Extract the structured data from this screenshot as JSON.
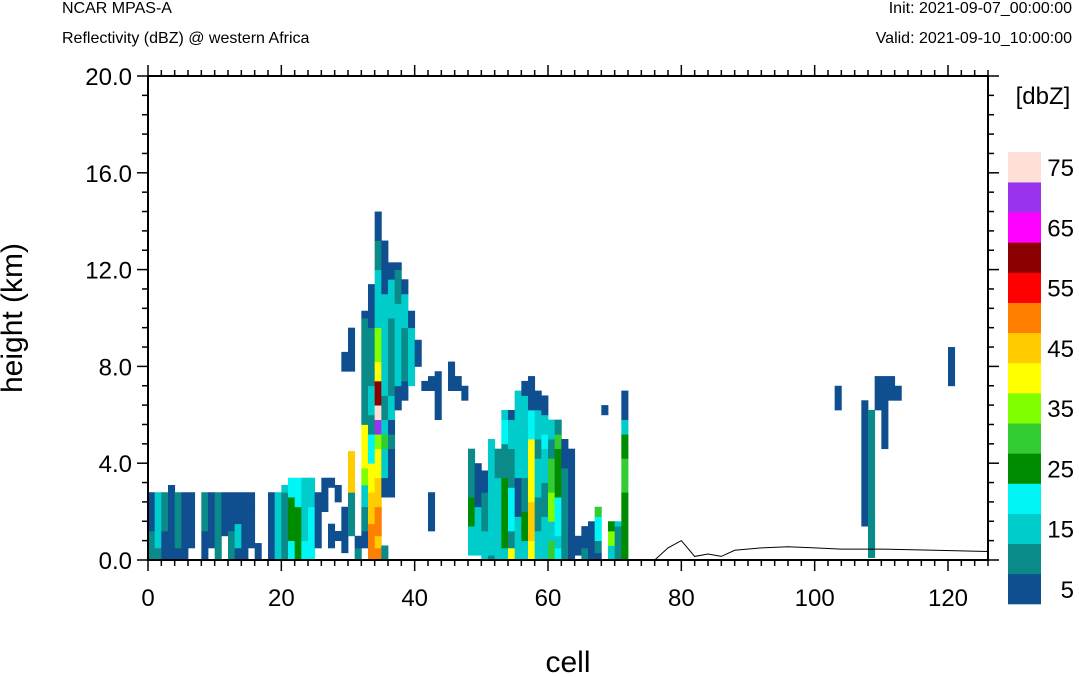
{
  "header": {
    "left_title": "NCAR MPAS-A",
    "left_subtitle": "Reflectivity (dBZ) @ western Africa",
    "init_label": "Init: 2021-09-07_00:00:00",
    "valid_label": "Valid: 2021-09-10_10:00:00"
  },
  "chart_data": {
    "type": "heatmap",
    "xlabel": "cell",
    "ylabel": "height (km)",
    "xlim": [
      0,
      126
    ],
    "ylim": [
      0,
      20
    ],
    "x_ticks": [
      "0",
      "20",
      "40",
      "60",
      "80",
      "100",
      "120"
    ],
    "y_ticks": [
      "0.0",
      "4.0",
      "8.0",
      "12.0",
      "16.0",
      "20.0"
    ],
    "x_tick_values": [
      0,
      20,
      40,
      60,
      80,
      100,
      120
    ],
    "y_tick_values": [
      0,
      4,
      8,
      12,
      16,
      20
    ],
    "colorbar": {
      "units_label": "[dbZ]",
      "levels": [
        5,
        10,
        15,
        20,
        25,
        30,
        35,
        40,
        45,
        50,
        55,
        60,
        65,
        70,
        75
      ],
      "tick_labels": [
        "5",
        "15",
        "25",
        "35",
        "45",
        "55",
        "65",
        "75"
      ],
      "colors": [
        "#0f4f8f",
        "#0b8a8a",
        "#00cccc",
        "#00f5f5",
        "#008c00",
        "#33cc33",
        "#80ff00",
        "#ffff00",
        "#ffcc00",
        "#ff8000",
        "#ff0000",
        "#8c0000",
        "#ff00ff",
        "#9933ee",
        "#ffe0d8"
      ]
    },
    "terrain_line": [
      [
        0,
        0
      ],
      [
        76,
        0
      ],
      [
        78,
        0.5
      ],
      [
        80,
        0.8
      ],
      [
        82,
        0.15
      ],
      [
        84,
        0.25
      ],
      [
        86,
        0.15
      ],
      [
        88,
        0.4
      ],
      [
        92,
        0.5
      ],
      [
        96,
        0.55
      ],
      [
        100,
        0.5
      ],
      [
        104,
        0.45
      ],
      [
        110,
        0.45
      ],
      [
        118,
        0.4
      ],
      [
        126,
        0.35
      ]
    ],
    "cells": [
      [
        0,
        0,
        1.2,
        2
      ],
      [
        0,
        1.2,
        2.8,
        1
      ],
      [
        1,
        0,
        0.5,
        2
      ],
      [
        1,
        0.5,
        2.8,
        3
      ],
      [
        2,
        0,
        1.2,
        1
      ],
      [
        2,
        1.2,
        2.8,
        2
      ],
      [
        3,
        0,
        3.1,
        1
      ],
      [
        4,
        0,
        0.5,
        1
      ],
      [
        4,
        0.5,
        2.8,
        2
      ],
      [
        5,
        0,
        2.8,
        1
      ],
      [
        6,
        0.5,
        2.8,
        1
      ],
      [
        8,
        0,
        1.2,
        1
      ],
      [
        8,
        1.2,
        2.8,
        2
      ],
      [
        9,
        0.5,
        2.8,
        1
      ],
      [
        10,
        0,
        2.8,
        2
      ],
      [
        11,
        1,
        2.8,
        1
      ],
      [
        12,
        0,
        1.2,
        2
      ],
      [
        12,
        1.2,
        2.8,
        1
      ],
      [
        13,
        0,
        0.5,
        1
      ],
      [
        13,
        0.5,
        1.5,
        3
      ],
      [
        13,
        1.5,
        2.8,
        1
      ],
      [
        14,
        0,
        2.8,
        1
      ],
      [
        15,
        0.5,
        2.2,
        1
      ],
      [
        15,
        2.2,
        2.8,
        1
      ],
      [
        16,
        0,
        0.7,
        1
      ],
      [
        18,
        0,
        2.8,
        1
      ],
      [
        19,
        0,
        0.5,
        3
      ],
      [
        19,
        0.5,
        2.8,
        3
      ],
      [
        20,
        0,
        2.8,
        2
      ],
      [
        20,
        2.8,
        3.1,
        3
      ],
      [
        21,
        0,
        0.8,
        4
      ],
      [
        21,
        0.8,
        2.6,
        5
      ],
      [
        21,
        2.6,
        3.4,
        4
      ],
      [
        22,
        0,
        2.2,
        5
      ],
      [
        22,
        2.2,
        3.4,
        4
      ],
      [
        23,
        0,
        0.8,
        4
      ],
      [
        23,
        0.8,
        3.4,
        3
      ],
      [
        24,
        0,
        2.2,
        4
      ],
      [
        24,
        2.2,
        3.4,
        3
      ],
      [
        25,
        0.5,
        2.8,
        1
      ],
      [
        26,
        2,
        3.4,
        1
      ],
      [
        27,
        0.5,
        1.5,
        1
      ],
      [
        27,
        3,
        3.4,
        1
      ],
      [
        28,
        0.8,
        1.2,
        1
      ],
      [
        28,
        2.4,
        3.1,
        1
      ],
      [
        29,
        0.3,
        2.2,
        1
      ],
      [
        29,
        7.8,
        8.6,
        1
      ],
      [
        30,
        1,
        2.8,
        2
      ],
      [
        30,
        2.8,
        4.5,
        9
      ],
      [
        30,
        7.8,
        9.6,
        1
      ],
      [
        31,
        0,
        0.5,
        2
      ],
      [
        31,
        0.5,
        1,
        1
      ],
      [
        32,
        0.5,
        1.2,
        1
      ],
      [
        32,
        1.2,
        2.2,
        2
      ],
      [
        32,
        2.2,
        3.1,
        3
      ],
      [
        32,
        3.1,
        3.8,
        7
      ],
      [
        32,
        3.8,
        5.6,
        8
      ],
      [
        32,
        5.6,
        10,
        2
      ],
      [
        32,
        10,
        10.3,
        1
      ],
      [
        33,
        0,
        1.5,
        10
      ],
      [
        33,
        1.5,
        2.8,
        9
      ],
      [
        33,
        2.8,
        4,
        8
      ],
      [
        33,
        4,
        5.2,
        4
      ],
      [
        33,
        5.2,
        6,
        2
      ],
      [
        33,
        6,
        7.2,
        3
      ],
      [
        33,
        7.2,
        9.6,
        2
      ],
      [
        33,
        9.6,
        11.4,
        1
      ],
      [
        34,
        0,
        0.5,
        10
      ],
      [
        34,
        0.5,
        1,
        9
      ],
      [
        34,
        1,
        2.2,
        10
      ],
      [
        34,
        2.2,
        3.4,
        9
      ],
      [
        34,
        3.4,
        4.6,
        8
      ],
      [
        34,
        4.6,
        5.2,
        7
      ],
      [
        34,
        5.2,
        5.8,
        14
      ],
      [
        34,
        5.8,
        6.4,
        15
      ],
      [
        34,
        6.4,
        7.4,
        12
      ],
      [
        34,
        7.4,
        8.2,
        8
      ],
      [
        34,
        8.2,
        9.6,
        7
      ],
      [
        34,
        9.6,
        12,
        3
      ],
      [
        34,
        12,
        13.2,
        2
      ],
      [
        34,
        13.2,
        14.4,
        1
      ],
      [
        35,
        0,
        0.6,
        2
      ],
      [
        35,
        2.6,
        3.4,
        1
      ],
      [
        35,
        3.4,
        4.6,
        3
      ],
      [
        35,
        4.6,
        5.2,
        6
      ],
      [
        35,
        5.2,
        5.8,
        3
      ],
      [
        35,
        5.8,
        6.8,
        2
      ],
      [
        35,
        6.8,
        11,
        3
      ],
      [
        35,
        11,
        13.2,
        1
      ],
      [
        36,
        2.6,
        4.6,
        1
      ],
      [
        36,
        4.6,
        5.2,
        2
      ],
      [
        36,
        5.2,
        5.8,
        1
      ],
      [
        36,
        5.8,
        6.8,
        3
      ],
      [
        36,
        6.8,
        10,
        2
      ],
      [
        36,
        10,
        11.6,
        3
      ],
      [
        36,
        11.6,
        12.3,
        1
      ],
      [
        37,
        6.2,
        7.2,
        1
      ],
      [
        37,
        7.2,
        10.6,
        3
      ],
      [
        37,
        10.6,
        12,
        2
      ],
      [
        37,
        12,
        12.3,
        1
      ],
      [
        38,
        6.6,
        7.4,
        1
      ],
      [
        38,
        7.4,
        9.6,
        2
      ],
      [
        38,
        9.6,
        11,
        3
      ],
      [
        38,
        11,
        11.6,
        1
      ],
      [
        39,
        7.2,
        9.6,
        3
      ],
      [
        39,
        9.6,
        10.3,
        1
      ],
      [
        40,
        8,
        9.1,
        1
      ],
      [
        41,
        7,
        7.4,
        1
      ],
      [
        42,
        1.2,
        2.8,
        1
      ],
      [
        42,
        7,
        7.6,
        1
      ],
      [
        43,
        5.8,
        7.8,
        1
      ],
      [
        45,
        7,
        8.2,
        1
      ],
      [
        46,
        7,
        7.6,
        1
      ],
      [
        47,
        6.6,
        7.2,
        1
      ],
      [
        48,
        0.2,
        1.4,
        3
      ],
      [
        48,
        1.4,
        2.6,
        5
      ],
      [
        48,
        2.6,
        4.6,
        2
      ],
      [
        49,
        0.2,
        2.2,
        3
      ],
      [
        49,
        2.2,
        4,
        1
      ],
      [
        50,
        0,
        1.2,
        3
      ],
      [
        50,
        1.2,
        2.8,
        2
      ],
      [
        50,
        2.8,
        3.7,
        1
      ],
      [
        51,
        0,
        0.2,
        2
      ],
      [
        51,
        0.2,
        1.4,
        3
      ],
      [
        51,
        1.4,
        4.6,
        3
      ],
      [
        51,
        4.6,
        5,
        3
      ],
      [
        52,
        0,
        0.8,
        3
      ],
      [
        52,
        0.8,
        3.4,
        3
      ],
      [
        52,
        3.4,
        4.6,
        2
      ],
      [
        53,
        0,
        0.5,
        3
      ],
      [
        53,
        0.5,
        3.4,
        5
      ],
      [
        53,
        3.4,
        4.8,
        2
      ],
      [
        53,
        4.8,
        5.8,
        4
      ],
      [
        53,
        5.8,
        6.2,
        3
      ],
      [
        54,
        0,
        0.5,
        8
      ],
      [
        54,
        0.5,
        1.2,
        2
      ],
      [
        54,
        1.2,
        3,
        4
      ],
      [
        54,
        3,
        4.6,
        2
      ],
      [
        54,
        4.6,
        5.8,
        3
      ],
      [
        54,
        5.8,
        6.2,
        1
      ],
      [
        55,
        0,
        1.8,
        3
      ],
      [
        55,
        1.8,
        3.4,
        1
      ],
      [
        55,
        3.4,
        6.2,
        3
      ],
      [
        55,
        6.2,
        7,
        3
      ],
      [
        56,
        0,
        0.8,
        3
      ],
      [
        56,
        0.8,
        2,
        5
      ],
      [
        56,
        2,
        3.4,
        2
      ],
      [
        56,
        3.4,
        5,
        3
      ],
      [
        56,
        5,
        6.8,
        3
      ],
      [
        56,
        6.8,
        7.4,
        1
      ],
      [
        57,
        0,
        0.8,
        8
      ],
      [
        57,
        0.8,
        2.4,
        9
      ],
      [
        57,
        2.4,
        5,
        8
      ],
      [
        57,
        5,
        6.2,
        4
      ],
      [
        57,
        6.2,
        7.6,
        1
      ],
      [
        58,
        0,
        1.2,
        3
      ],
      [
        58,
        1.2,
        2.6,
        2
      ],
      [
        58,
        2.6,
        4.2,
        3
      ],
      [
        58,
        4.2,
        5,
        2
      ],
      [
        58,
        5,
        6.2,
        3
      ],
      [
        58,
        6.2,
        7,
        1
      ],
      [
        59,
        0,
        1.8,
        3
      ],
      [
        59,
        1.8,
        3.2,
        2
      ],
      [
        59,
        3.2,
        4.6,
        3
      ],
      [
        59,
        4.6,
        5.2,
        4
      ],
      [
        59,
        5.2,
        6,
        3
      ],
      [
        59,
        6,
        6.8,
        1
      ],
      [
        60,
        0,
        0.8,
        6
      ],
      [
        60,
        0.8,
        1.6,
        3
      ],
      [
        60,
        1.6,
        2.8,
        7
      ],
      [
        60,
        2.8,
        4.2,
        6
      ],
      [
        60,
        4.2,
        5,
        2
      ],
      [
        60,
        5,
        5.8,
        3
      ],
      [
        61,
        0,
        0.5,
        4
      ],
      [
        61,
        0.5,
        1,
        3
      ],
      [
        61,
        1,
        2.6,
        4
      ],
      [
        61,
        2.6,
        4.6,
        5
      ],
      [
        61,
        4.6,
        5.2,
        6
      ],
      [
        61,
        5.2,
        5.8,
        2
      ],
      [
        62,
        0,
        1.2,
        2
      ],
      [
        62,
        1.2,
        3.8,
        2
      ],
      [
        62,
        3.8,
        4.4,
        1
      ],
      [
        62,
        4.4,
        5,
        1
      ],
      [
        63,
        0,
        1.8,
        1
      ],
      [
        63,
        1.8,
        3.2,
        1
      ],
      [
        63,
        3.2,
        4.6,
        1
      ],
      [
        64,
        0.2,
        1,
        1
      ],
      [
        65,
        0,
        0.5,
        2
      ],
      [
        65,
        0.5,
        1.4,
        1
      ],
      [
        66,
        0,
        0.3,
        1
      ],
      [
        66,
        0.3,
        1.6,
        1
      ],
      [
        67,
        0,
        0.3,
        1
      ],
      [
        67,
        0.3,
        0.8,
        2
      ],
      [
        67,
        0.8,
        1.8,
        4
      ],
      [
        67,
        1.8,
        2.2,
        6
      ],
      [
        68,
        6,
        6.4,
        1
      ],
      [
        69,
        0,
        0.6,
        3
      ],
      [
        69,
        0.6,
        1.2,
        7
      ],
      [
        69,
        1.2,
        1.6,
        5
      ],
      [
        70,
        0,
        1.4,
        2
      ],
      [
        70,
        1.4,
        1.6,
        3
      ],
      [
        71,
        0,
        2.8,
        5
      ],
      [
        71,
        2.8,
        4.2,
        6
      ],
      [
        71,
        4.2,
        5.2,
        5
      ],
      [
        71,
        5.2,
        5.8,
        3
      ],
      [
        71,
        5.8,
        6.6,
        1
      ],
      [
        71,
        6.6,
        7,
        1
      ],
      [
        107,
        1.4,
        6.6,
        1
      ],
      [
        108,
        0.1,
        6.2,
        2
      ],
      [
        109,
        6.2,
        7.6,
        1
      ],
      [
        110,
        4.6,
        5.8,
        1
      ],
      [
        110,
        5.8,
        7.6,
        1
      ],
      [
        111,
        6.6,
        7.6,
        1
      ],
      [
        112,
        6.6,
        7.2,
        1
      ],
      [
        103,
        6.2,
        7.2,
        1
      ],
      [
        120,
        7.2,
        8.8,
        1
      ]
    ]
  }
}
